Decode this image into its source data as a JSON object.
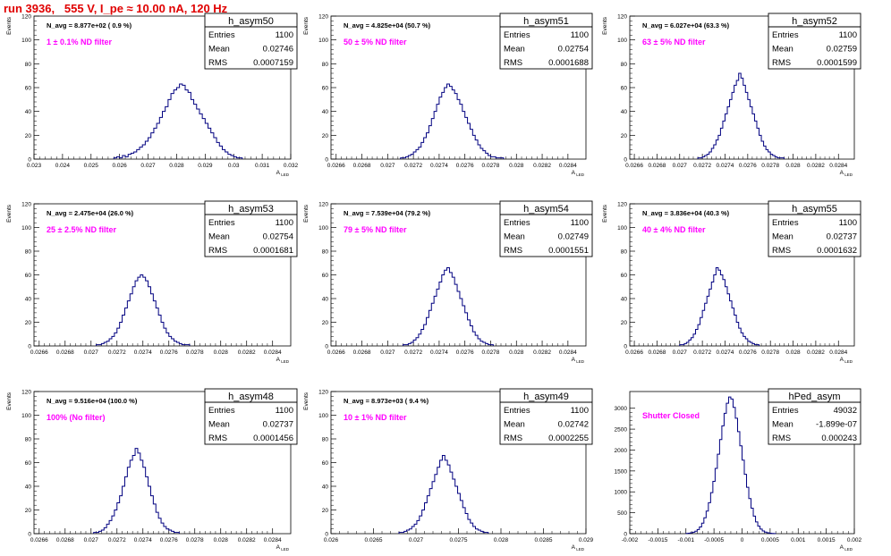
{
  "run_title": "run 3936,   555 V, I_pe ≈ 10.00 nA, 120 Hz",
  "colors": {
    "hist_line": "#000080",
    "annotation_magenta": "#ff00ff",
    "title_red": "#e00000",
    "axis": "#000000"
  },
  "chart_data": [
    {
      "type": "histogram",
      "name": "h_asym50",
      "xlabel": "A_{LED}",
      "ylabel": "Events",
      "xlim": [
        0.023,
        0.032
      ],
      "ylim": [
        0,
        120
      ],
      "xticks": [
        "0.023",
        "0.024",
        "0.025",
        "0.026",
        "0.027",
        "0.028",
        "0.029",
        "0.03",
        "0.031",
        "0.032"
      ],
      "yticks": [
        "0",
        "20",
        "40",
        "60",
        "80",
        "100",
        "120"
      ],
      "navg": "N_avg = 8.877e+02 ( 0.9 %)",
      "filter": "1 ± 0.1% ND filter",
      "stats": {
        "Entries": "1100",
        "Mean": "0.02746",
        "RMS": "0.0007159"
      },
      "bins": {
        "x0": 0.0258,
        "width": 0.0001,
        "counts": [
          1,
          2,
          1,
          3,
          2,
          4,
          5,
          6,
          8,
          10,
          12,
          15,
          18,
          22,
          26,
          30,
          35,
          40,
          44,
          50,
          55,
          58,
          60,
          63,
          62,
          58,
          56,
          50,
          46,
          42,
          38,
          34,
          30,
          26,
          22,
          18,
          14,
          11,
          8,
          6,
          4,
          3,
          2,
          1,
          1
        ]
      }
    },
    {
      "type": "histogram",
      "name": "h_asym51",
      "xlabel": "A_{LED}",
      "ylabel": "Events",
      "xlim": [
        0.02656,
        0.02854
      ],
      "ylim": [
        0,
        120
      ],
      "xticks": [
        "0.0266",
        "0.0268",
        "0.027",
        "0.0272",
        "0.0274",
        "0.0276",
        "0.0278",
        "0.028",
        "0.0282",
        "0.0284"
      ],
      "yticks": [
        "0",
        "20",
        "40",
        "60",
        "80",
        "100",
        "120"
      ],
      "navg": "N_avg = 4.825e+04 (50.7 %)",
      "filter": "50 ± 5% ND filter",
      "stats": {
        "Entries": "1100",
        "Mean": "0.02754",
        "RMS": "0.0001688"
      },
      "bins": {
        "x0": 0.0271,
        "width": 2e-05,
        "counts": [
          1,
          1,
          2,
          3,
          4,
          6,
          8,
          10,
          14,
          18,
          22,
          28,
          34,
          40,
          46,
          52,
          56,
          60,
          63,
          61,
          58,
          55,
          50,
          46,
          40,
          35,
          30,
          25,
          20,
          16,
          12,
          9,
          7,
          5,
          3,
          2,
          2,
          1,
          1,
          1
        ]
      }
    },
    {
      "type": "histogram",
      "name": "h_asym52",
      "xlabel": "A_{LED}",
      "ylabel": "Events",
      "xlim": [
        0.02656,
        0.02854
      ],
      "ylim": [
        0,
        120
      ],
      "xticks": [
        "0.0266",
        "0.0268",
        "0.027",
        "0.0272",
        "0.0274",
        "0.0276",
        "0.0278",
        "0.028",
        "0.0282",
        "0.0284"
      ],
      "yticks": [
        "0",
        "20",
        "40",
        "60",
        "80",
        "100",
        "120"
      ],
      "navg": "N_avg = 6.027e+04 (63.3 %)",
      "filter": "63 ± 5% ND filter",
      "stats": {
        "Entries": "1100",
        "Mean": "0.02759",
        "RMS": "0.0001599"
      },
      "bins": {
        "x0": 0.02716,
        "width": 2e-05,
        "counts": [
          1,
          1,
          2,
          3,
          4,
          6,
          9,
          12,
          16,
          20,
          26,
          32,
          38,
          44,
          50,
          56,
          62,
          66,
          72,
          68,
          62,
          56,
          50,
          44,
          38,
          32,
          26,
          20,
          15,
          11,
          8,
          6,
          4,
          3,
          2,
          1,
          1,
          1
        ]
      }
    },
    {
      "type": "histogram",
      "name": "h_asym53",
      "xlabel": "A_{LED}",
      "ylabel": "Events",
      "xlim": [
        0.02656,
        0.02854
      ],
      "ylim": [
        0,
        120
      ],
      "xticks": [
        "0.0266",
        "0.0268",
        "0.027",
        "0.0272",
        "0.0274",
        "0.0276",
        "0.0278",
        "0.028",
        "0.0282",
        "0.0284"
      ],
      "yticks": [
        "0",
        "20",
        "40",
        "60",
        "80",
        "100",
        "120"
      ],
      "navg": "N_avg = 2.475e+04 (26.0 %)",
      "filter": "25 ± 2.5% ND filter",
      "stats": {
        "Entries": "1100",
        "Mean": "0.02754",
        "RMS": "0.0001681"
      },
      "bins": {
        "x0": 0.02704,
        "width": 2e-05,
        "counts": [
          1,
          1,
          2,
          3,
          4,
          6,
          8,
          11,
          15,
          20,
          26,
          32,
          38,
          44,
          50,
          55,
          58,
          60,
          58,
          55,
          50,
          44,
          38,
          32,
          26,
          20,
          15,
          11,
          8,
          6,
          4,
          3,
          2,
          1,
          1,
          1
        ]
      }
    },
    {
      "type": "histogram",
      "name": "h_asym54",
      "xlabel": "A_{LED}",
      "ylabel": "Events",
      "xlim": [
        0.02656,
        0.02854
      ],
      "ylim": [
        0,
        120
      ],
      "xticks": [
        "0.0266",
        "0.0268",
        "0.027",
        "0.0272",
        "0.0274",
        "0.0276",
        "0.0278",
        "0.028",
        "0.0282",
        "0.0284"
      ],
      "yticks": [
        "0",
        "20",
        "40",
        "60",
        "80",
        "100",
        "120"
      ],
      "navg": "N_avg = 7.539e+04 (79.2 %)",
      "filter": "79 ± 5% ND filter",
      "stats": {
        "Entries": "1100",
        "Mean": "0.02749",
        "RMS": "0.0001551"
      },
      "bins": {
        "x0": 0.02712,
        "width": 2e-05,
        "counts": [
          1,
          1,
          2,
          3,
          5,
          7,
          10,
          14,
          18,
          24,
          30,
          36,
          42,
          48,
          54,
          60,
          64,
          66,
          62,
          58,
          52,
          46,
          40,
          34,
          28,
          22,
          17,
          12,
          9,
          6,
          4,
          3,
          2,
          1,
          1
        ]
      }
    },
    {
      "type": "histogram",
      "name": "h_asym55",
      "xlabel": "A_{LED}",
      "ylabel": "Events",
      "xlim": [
        0.02656,
        0.02854
      ],
      "ylim": [
        0,
        120
      ],
      "xticks": [
        "0.0266",
        "0.0268",
        "0.027",
        "0.0272",
        "0.0274",
        "0.0276",
        "0.0278",
        "0.028",
        "0.0282",
        "0.0284"
      ],
      "yticks": [
        "0",
        "20",
        "40",
        "60",
        "80",
        "100",
        "120"
      ],
      "navg": "N_avg = 3.836e+04 (40.3 %)",
      "filter": "40 ± 4% ND filter",
      "stats": {
        "Entries": "1100",
        "Mean": "0.02737",
        "RMS": "0.0001632"
      },
      "bins": {
        "x0": 0.027,
        "width": 2e-05,
        "counts": [
          1,
          1,
          2,
          3,
          5,
          7,
          10,
          14,
          18,
          24,
          30,
          36,
          42,
          48,
          54,
          60,
          66,
          64,
          60,
          56,
          50,
          44,
          38,
          32,
          26,
          20,
          15,
          11,
          8,
          6,
          4,
          3,
          2,
          1,
          1
        ]
      }
    },
    {
      "type": "histogram",
      "name": "h_asym48",
      "xlabel": "A_{LED}",
      "ylabel": "Events",
      "xlim": [
        0.02656,
        0.02854
      ],
      "ylim": [
        0,
        120
      ],
      "xticks": [
        "0.0266",
        "0.0268",
        "0.027",
        "0.0272",
        "0.0274",
        "0.0276",
        "0.0278",
        "0.028",
        "0.0282",
        "0.0284"
      ],
      "yticks": [
        "0",
        "20",
        "40",
        "60",
        "80",
        "100",
        "120"
      ],
      "navg": "N_avg = 9.516e+04 (100.0 %)",
      "filter": "100% (No filter)",
      "stats": {
        "Entries": "1100",
        "Mean": "0.02737",
        "RMS": "0.0001456"
      },
      "bins": {
        "x0": 0.02702,
        "width": 2e-05,
        "counts": [
          1,
          1,
          2,
          3,
          5,
          8,
          11,
          15,
          20,
          26,
          32,
          40,
          48,
          56,
          62,
          66,
          72,
          68,
          62,
          56,
          48,
          40,
          32,
          25,
          18,
          13,
          9,
          6,
          4,
          3,
          2,
          1,
          1
        ]
      }
    },
    {
      "type": "histogram",
      "name": "h_asym49",
      "xlabel": "A_{LED}",
      "ylabel": "Events",
      "xlim": [
        0.026,
        0.029
      ],
      "ylim": [
        0,
        120
      ],
      "xticks": [
        "0.026",
        "0.0265",
        "0.027",
        "0.0275",
        "0.028",
        "0.0285",
        "0.029"
      ],
      "yticks": [
        "0",
        "20",
        "40",
        "60",
        "80",
        "100",
        "120"
      ],
      "navg": "N_avg = 8.973e+03 ( 9.4 %)",
      "filter": "10 ± 1% ND filter",
      "stats": {
        "Entries": "1100",
        "Mean": "0.02742",
        "RMS": "0.0002255"
      },
      "bins": {
        "x0": 0.0268,
        "width": 3e-05,
        "counts": [
          1,
          1,
          2,
          3,
          4,
          6,
          8,
          11,
          15,
          20,
          26,
          32,
          38,
          44,
          50,
          56,
          62,
          66,
          62,
          58,
          52,
          46,
          40,
          34,
          28,
          22,
          17,
          12,
          9,
          6,
          4,
          3,
          2,
          1,
          1
        ]
      }
    },
    {
      "type": "histogram",
      "name": "hPed_asym",
      "xlabel": "A_{LED}",
      "ylabel": "",
      "xlim": [
        -0.002,
        0.002
      ],
      "ylim": [
        0,
        3400
      ],
      "xticks": [
        "-0.002",
        "-0.0015",
        "-0.001",
        "-0.0005",
        "0",
        "0.0005",
        "0.001",
        "0.0015",
        "0.002"
      ],
      "yticks": [
        "0",
        "500",
        "1000",
        "1500",
        "2000",
        "2500",
        "3000"
      ],
      "navg": "",
      "filter": "Shutter Closed",
      "stats": {
        "Entries": "49032",
        "Mean": "-1.899e-07",
        "RMS": "0.000243"
      },
      "bins": {
        "x0": -0.001,
        "width": 4e-05,
        "counts": [
          5,
          10,
          20,
          35,
          60,
          100,
          160,
          250,
          380,
          540,
          740,
          980,
          1250,
          1560,
          1900,
          2250,
          2580,
          2880,
          3120,
          3270,
          3220,
          3020,
          2760,
          2440,
          2100,
          1760,
          1420,
          1110,
          840,
          610,
          420,
          280,
          180,
          110,
          65,
          38,
          20,
          10,
          5,
          3
        ]
      }
    }
  ]
}
